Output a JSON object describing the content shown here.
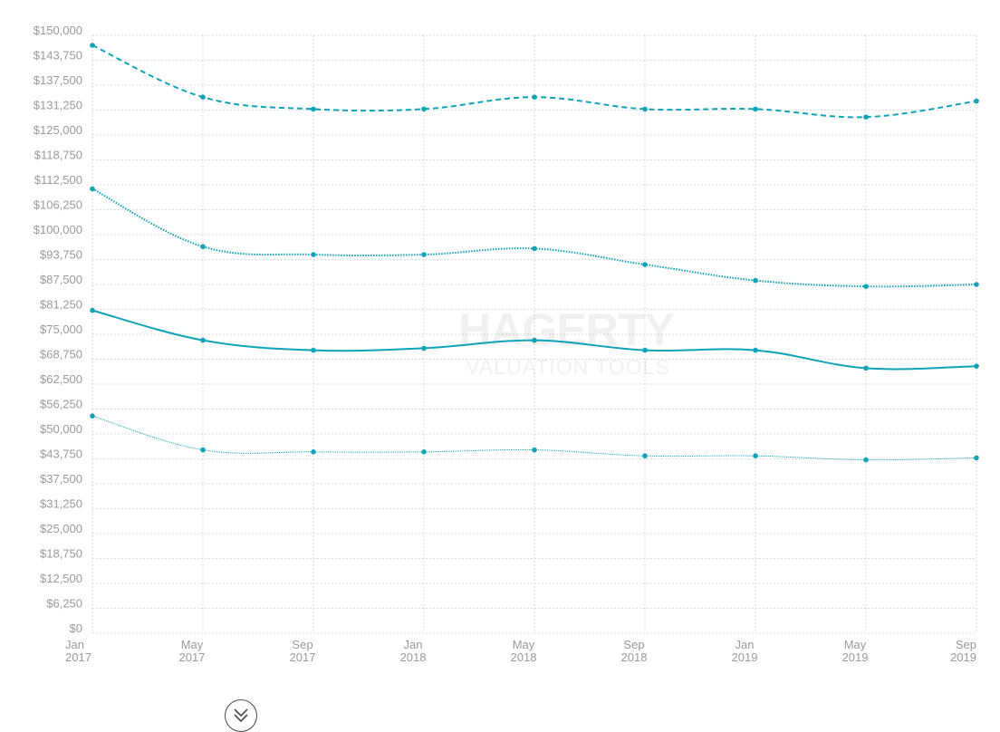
{
  "watermark": {
    "brand": "HAGERTY",
    "subtitle": "VALUATION TOOLS"
  },
  "scroll_button": {
    "icon": "double-chevron-down-icon"
  },
  "chart_data": {
    "type": "line",
    "title": "",
    "xlabel": "",
    "ylabel": "",
    "ylim": [
      0,
      150000
    ],
    "grid": true,
    "legend": "none",
    "colors": {
      "series": "#0fa3b8",
      "grid": "#cfcfcf",
      "tick": "#9a9a9a"
    },
    "y_ticks": [
      "$0",
      "$6,250",
      "$12,500",
      "$18,750",
      "$25,000",
      "$31,250",
      "$37,500",
      "$43,750",
      "$50,000",
      "$56,250",
      "$62,500",
      "$68,750",
      "$75,000",
      "$81,250",
      "$87,500",
      "$93,750",
      "$100,000",
      "$106,250",
      "$112,500",
      "$118,750",
      "$125,000",
      "$131,250",
      "$137,500",
      "$143,750",
      "$150,000"
    ],
    "x_ticks": [
      {
        "month": "Jan",
        "year": "2017"
      },
      {
        "month": "May",
        "year": "2017"
      },
      {
        "month": "Sep",
        "year": "2017"
      },
      {
        "month": "Jan",
        "year": "2018"
      },
      {
        "month": "May",
        "year": "2018"
      },
      {
        "month": "Sep",
        "year": "2018"
      },
      {
        "month": "Jan",
        "year": "2019"
      },
      {
        "month": "May",
        "year": "2019"
      },
      {
        "month": "Sep",
        "year": "2019"
      }
    ],
    "x": [
      "Jan 2017",
      "May 2017",
      "Sep 2017",
      "Jan 2018",
      "May 2018",
      "Sep 2018",
      "Jan 2019",
      "May 2019",
      "Sep 2019"
    ],
    "series": [
      {
        "style": "dashed",
        "values": [
          147500,
          134500,
          131500,
          131500,
          134500,
          131500,
          131500,
          129500,
          133500
        ]
      },
      {
        "style": "dotted",
        "values": [
          111500,
          97000,
          95000,
          95000,
          96500,
          92500,
          88500,
          87000,
          87500
        ]
      },
      {
        "style": "solid",
        "values": [
          81000,
          73500,
          71000,
          71500,
          73500,
          71000,
          71000,
          66500,
          67000
        ]
      },
      {
        "style": "thin",
        "values": [
          54500,
          46000,
          45500,
          45500,
          46000,
          44500,
          44500,
          43500,
          44000
        ]
      }
    ]
  }
}
